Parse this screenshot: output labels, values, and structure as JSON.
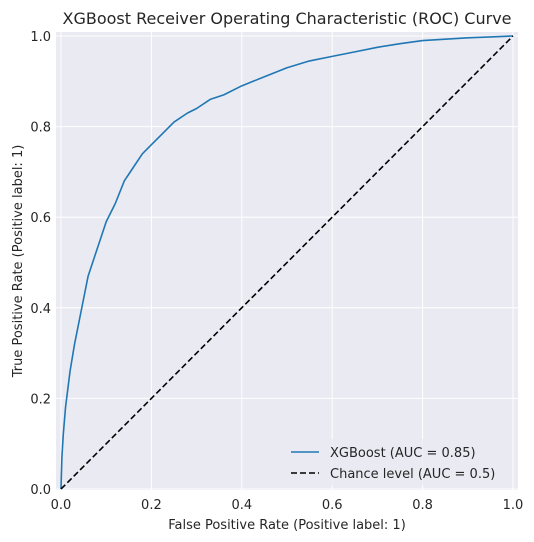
{
  "chart_data": {
    "type": "line",
    "title": "XGBoost Receiver Operating Characteristic (ROC) Curve",
    "xlabel": "False Positive Rate (Positive label: 1)",
    "ylabel": "True Positive Rate (Positive label: 1)",
    "xlim": [
      0,
      1
    ],
    "ylim": [
      0,
      1
    ],
    "grid": true,
    "legend_position": "lower-right",
    "xticks": [
      0.0,
      0.2,
      0.4,
      0.6,
      0.8,
      1.0
    ],
    "xtick_labels": [
      "0.0",
      "0.2",
      "0.4",
      "0.6",
      "0.8",
      "1.0"
    ],
    "yticks": [
      0.0,
      0.2,
      0.4,
      0.6,
      0.8,
      1.0
    ],
    "ytick_labels": [
      "0.0",
      "0.2",
      "0.4",
      "0.6",
      "0.8",
      "1.0"
    ],
    "series": [
      {
        "name": "XGBoost (AUC = 0.85)",
        "color": "#1f77b4",
        "style": "solid",
        "x": [
          0.0,
          0.002,
          0.005,
          0.01,
          0.015,
          0.02,
          0.03,
          0.04,
          0.05,
          0.06,
          0.07,
          0.08,
          0.09,
          0.1,
          0.12,
          0.14,
          0.16,
          0.18,
          0.2,
          0.22,
          0.25,
          0.28,
          0.3,
          0.33,
          0.36,
          0.4,
          0.45,
          0.5,
          0.55,
          0.6,
          0.65,
          0.7,
          0.75,
          0.8,
          0.85,
          0.9,
          0.95,
          1.0
        ],
        "y": [
          0.0,
          0.07,
          0.12,
          0.18,
          0.22,
          0.26,
          0.32,
          0.37,
          0.42,
          0.47,
          0.5,
          0.53,
          0.56,
          0.59,
          0.63,
          0.68,
          0.71,
          0.74,
          0.76,
          0.78,
          0.81,
          0.83,
          0.84,
          0.86,
          0.87,
          0.89,
          0.91,
          0.93,
          0.945,
          0.955,
          0.965,
          0.975,
          0.983,
          0.99,
          0.993,
          0.996,
          0.998,
          1.0
        ]
      },
      {
        "name": "Chance level (AUC = 0.5)",
        "color": "#000000",
        "style": "dashed",
        "x": [
          0.0,
          1.0
        ],
        "y": [
          0.0,
          1.0
        ]
      }
    ]
  }
}
